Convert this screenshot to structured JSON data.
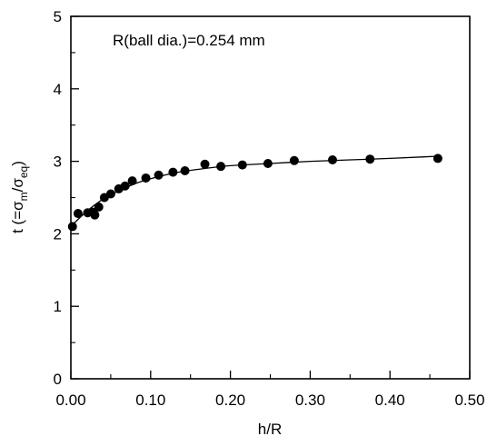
{
  "chart_data": {
    "type": "scatter",
    "annotation": "R(ball dia.)=0.254 mm",
    "xlabel": "h/R",
    "ylabel": {
      "prefix": "t (=σ",
      "sub1": "m",
      "mid": "/σ",
      "sub2": "eq",
      "suffix": ")"
    },
    "xlim": [
      0.0,
      0.5
    ],
    "ylim": [
      0,
      5
    ],
    "xticks": [
      "0.00",
      "0.10",
      "0.20",
      "0.30",
      "0.40",
      "0.50"
    ],
    "yticks": [
      "0",
      "1",
      "2",
      "3",
      "4",
      "5"
    ],
    "minor_ticks": true,
    "grid": false,
    "colors": {
      "axis": "#000000",
      "points": "#000000",
      "fit_line": "#000000"
    },
    "series": [
      {
        "x": [
          0.002,
          0.009,
          0.021,
          0.027,
          0.03,
          0.035,
          0.042,
          0.05,
          0.06,
          0.068,
          0.077,
          0.094,
          0.11,
          0.128,
          0.143,
          0.168,
          0.188,
          0.215,
          0.247,
          0.28,
          0.328,
          0.375,
          0.46
        ],
        "y": [
          2.1,
          2.28,
          2.29,
          2.3,
          2.26,
          2.37,
          2.5,
          2.55,
          2.62,
          2.66,
          2.73,
          2.77,
          2.81,
          2.85,
          2.87,
          2.96,
          2.93,
          2.95,
          2.97,
          3.01,
          3.02,
          3.03,
          3.04
        ]
      }
    ],
    "fit": {
      "x": [
        0.0,
        0.01,
        0.02,
        0.03,
        0.045,
        0.06,
        0.08,
        0.1,
        0.13,
        0.16,
        0.2,
        0.25,
        0.3,
        0.35,
        0.4,
        0.44,
        0.46
      ],
      "y": [
        2.1,
        2.21,
        2.31,
        2.4,
        2.51,
        2.59,
        2.69,
        2.76,
        2.84,
        2.89,
        2.94,
        2.97,
        3.0,
        3.02,
        3.04,
        3.06,
        3.07
      ]
    }
  }
}
